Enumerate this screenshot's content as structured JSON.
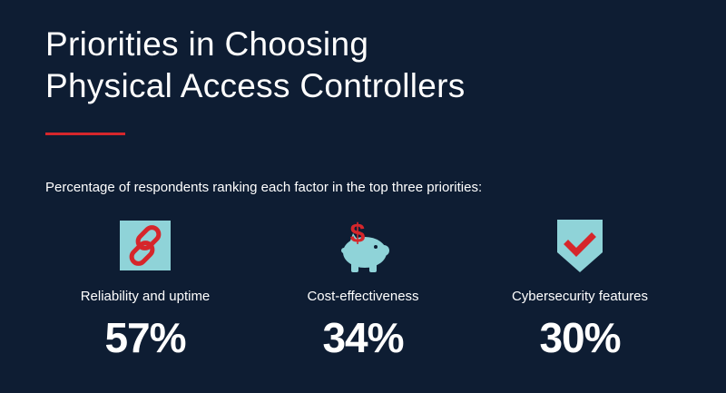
{
  "header": {
    "title_line1": "Priorities in Choosing",
    "title_line2": "Physical Access Controllers",
    "subtitle": "Percentage of respondents ranking each factor in the top three priorities:"
  },
  "colors": {
    "background": "#0e1d33",
    "accent": "#d6262b",
    "icon_fill": "#8fd3d8"
  },
  "stats": [
    {
      "icon": "link-chain-icon",
      "label": "Reliability and uptime",
      "value": "57%"
    },
    {
      "icon": "piggy-bank-dollar-icon",
      "label": "Cost-effectiveness",
      "value": "34%"
    },
    {
      "icon": "shield-check-icon",
      "label": "Cybersecurity features",
      "value": "30%"
    }
  ]
}
